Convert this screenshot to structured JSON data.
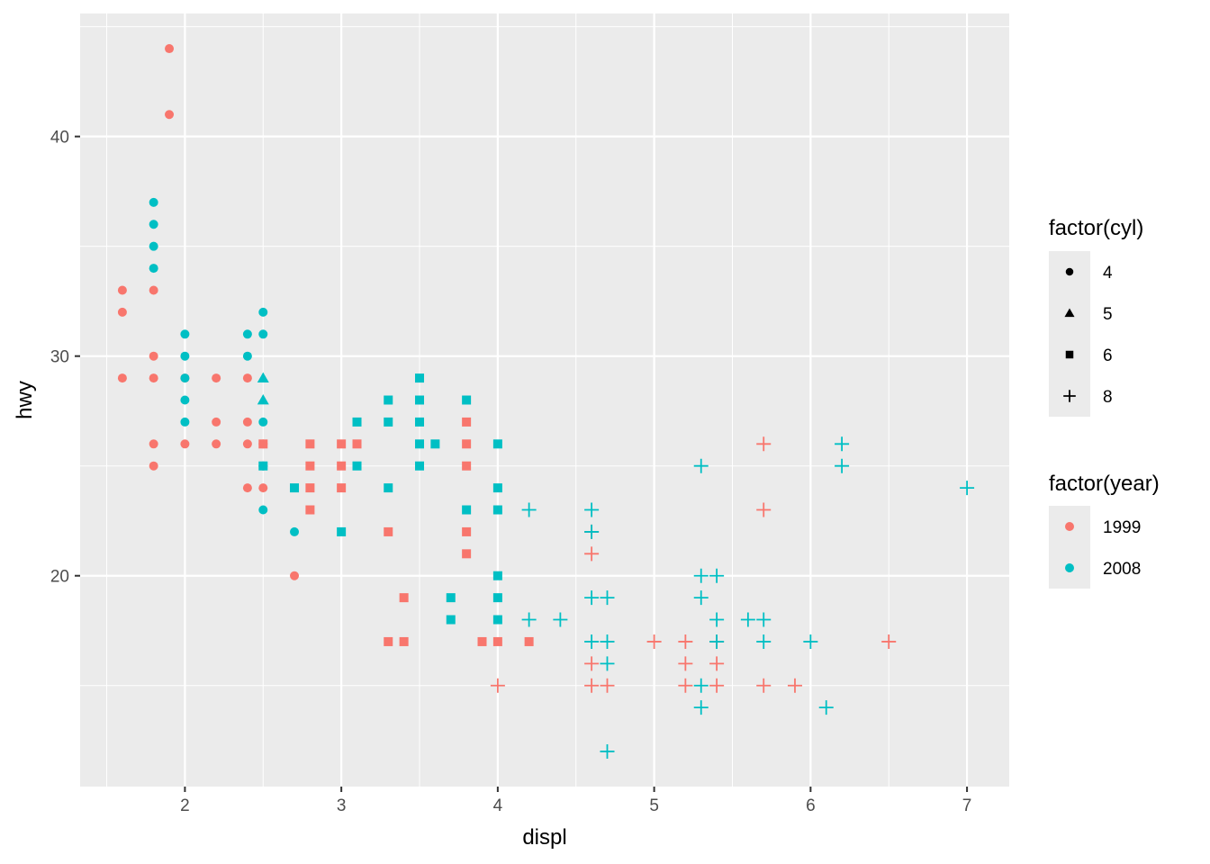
{
  "chart_data": {
    "type": "scatter",
    "xlabel": "displ",
    "ylabel": "hwy",
    "xlim": [
      1.33,
      7.27
    ],
    "ylim": [
      10.4,
      45.6
    ],
    "x_ticks": [
      2,
      3,
      4,
      5,
      6,
      7
    ],
    "y_ticks": [
      20,
      30,
      40
    ],
    "x_tick_labels": [
      "2",
      "3",
      "4",
      "5",
      "6",
      "7"
    ],
    "y_tick_labels": [
      "20",
      "30",
      "40"
    ],
    "grid": true,
    "legend_placement": "right",
    "shape_legend": {
      "title": "factor(cyl)",
      "items": [
        {
          "label": "4",
          "shape": "circle"
        },
        {
          "label": "5",
          "shape": "triangle"
        },
        {
          "label": "6",
          "shape": "square"
        },
        {
          "label": "8",
          "shape": "plus"
        }
      ]
    },
    "color_legend": {
      "title": "factor(year)",
      "items": [
        {
          "label": "1999",
          "color": "#F8766D"
        },
        {
          "label": "2008",
          "color": "#00BFC4"
        }
      ]
    },
    "points": [
      [
        1.6,
        33,
        "4",
        "1999"
      ],
      [
        1.6,
        32,
        "4",
        "1999"
      ],
      [
        1.6,
        29,
        "4",
        "1999"
      ],
      [
        1.8,
        33,
        "4",
        "1999"
      ],
      [
        1.8,
        30,
        "4",
        "1999"
      ],
      [
        1.8,
        29,
        "4",
        "1999"
      ],
      [
        1.8,
        26,
        "4",
        "1999"
      ],
      [
        1.8,
        25,
        "4",
        "1999"
      ],
      [
        1.9,
        44,
        "4",
        "1999"
      ],
      [
        1.9,
        41,
        "4",
        "1999"
      ],
      [
        2.0,
        29,
        "4",
        "1999"
      ],
      [
        2.0,
        26,
        "4",
        "1999"
      ],
      [
        2.2,
        29,
        "4",
        "1999"
      ],
      [
        2.2,
        27,
        "4",
        "1999"
      ],
      [
        2.2,
        26,
        "4",
        "1999"
      ],
      [
        2.4,
        29,
        "4",
        "1999"
      ],
      [
        2.4,
        27,
        "4",
        "1999"
      ],
      [
        2.4,
        26,
        "4",
        "1999"
      ],
      [
        2.4,
        24,
        "4",
        "1999"
      ],
      [
        2.5,
        26,
        "4",
        "1999"
      ],
      [
        2.5,
        25,
        "4",
        "1999"
      ],
      [
        2.5,
        24,
        "4",
        "1999"
      ],
      [
        2.7,
        20,
        "4",
        "1999"
      ],
      [
        1.8,
        37,
        "4",
        "2008"
      ],
      [
        1.8,
        36,
        "4",
        "2008"
      ],
      [
        1.8,
        35,
        "4",
        "2008"
      ],
      [
        1.8,
        34,
        "4",
        "2008"
      ],
      [
        2.0,
        31,
        "4",
        "2008"
      ],
      [
        2.0,
        30,
        "4",
        "2008"
      ],
      [
        2.0,
        29,
        "4",
        "2008"
      ],
      [
        2.0,
        28,
        "4",
        "2008"
      ],
      [
        2.0,
        27,
        "4",
        "2008"
      ],
      [
        2.4,
        31,
        "4",
        "2008"
      ],
      [
        2.4,
        30,
        "4",
        "2008"
      ],
      [
        2.5,
        32,
        "4",
        "2008"
      ],
      [
        2.5,
        31,
        "4",
        "2008"
      ],
      [
        2.5,
        27,
        "4",
        "2008"
      ],
      [
        2.5,
        25,
        "4",
        "2008"
      ],
      [
        2.5,
        23,
        "4",
        "2008"
      ],
      [
        2.7,
        22,
        "4",
        "2008"
      ],
      [
        2.5,
        29,
        "5",
        "2008"
      ],
      [
        2.5,
        28,
        "5",
        "2008"
      ],
      [
        2.5,
        26,
        "6",
        "1999"
      ],
      [
        2.8,
        26,
        "6",
        "1999"
      ],
      [
        2.8,
        25,
        "6",
        "1999"
      ],
      [
        2.8,
        24,
        "6",
        "1999"
      ],
      [
        2.8,
        23,
        "6",
        "1999"
      ],
      [
        3.0,
        26,
        "6",
        "1999"
      ],
      [
        3.0,
        25,
        "6",
        "1999"
      ],
      [
        3.0,
        24,
        "6",
        "1999"
      ],
      [
        3.1,
        26,
        "6",
        "1999"
      ],
      [
        3.3,
        22,
        "6",
        "1999"
      ],
      [
        3.3,
        17,
        "6",
        "1999"
      ],
      [
        3.4,
        19,
        "6",
        "1999"
      ],
      [
        3.4,
        17,
        "6",
        "1999"
      ],
      [
        3.8,
        27,
        "6",
        "1999"
      ],
      [
        3.8,
        26,
        "6",
        "1999"
      ],
      [
        3.8,
        25,
        "6",
        "1999"
      ],
      [
        3.8,
        22,
        "6",
        "1999"
      ],
      [
        3.8,
        21,
        "6",
        "1999"
      ],
      [
        3.9,
        17,
        "6",
        "1999"
      ],
      [
        4.0,
        17,
        "6",
        "1999"
      ],
      [
        4.2,
        17,
        "6",
        "1999"
      ],
      [
        2.5,
        25,
        "6",
        "2008"
      ],
      [
        2.7,
        24,
        "6",
        "2008"
      ],
      [
        3.0,
        22,
        "6",
        "2008"
      ],
      [
        3.1,
        27,
        "6",
        "2008"
      ],
      [
        3.1,
        25,
        "6",
        "2008"
      ],
      [
        3.3,
        28,
        "6",
        "2008"
      ],
      [
        3.3,
        27,
        "6",
        "2008"
      ],
      [
        3.3,
        24,
        "6",
        "2008"
      ],
      [
        3.5,
        29,
        "6",
        "2008"
      ],
      [
        3.5,
        28,
        "6",
        "2008"
      ],
      [
        3.5,
        27,
        "6",
        "2008"
      ],
      [
        3.5,
        26,
        "6",
        "2008"
      ],
      [
        3.5,
        25,
        "6",
        "2008"
      ],
      [
        3.6,
        26,
        "6",
        "2008"
      ],
      [
        3.7,
        19,
        "6",
        "2008"
      ],
      [
        3.7,
        18,
        "6",
        "2008"
      ],
      [
        3.8,
        28,
        "6",
        "2008"
      ],
      [
        3.8,
        23,
        "6",
        "2008"
      ],
      [
        4.0,
        26,
        "6",
        "2008"
      ],
      [
        4.0,
        24,
        "6",
        "2008"
      ],
      [
        4.0,
        23,
        "6",
        "2008"
      ],
      [
        4.0,
        20,
        "6",
        "2008"
      ],
      [
        4.0,
        19,
        "6",
        "2008"
      ],
      [
        4.0,
        18,
        "6",
        "2008"
      ],
      [
        4.0,
        15,
        "8",
        "1999"
      ],
      [
        4.6,
        22,
        "8",
        "1999"
      ],
      [
        4.6,
        21,
        "8",
        "1999"
      ],
      [
        4.6,
        16,
        "8",
        "1999"
      ],
      [
        4.6,
        15,
        "8",
        "1999"
      ],
      [
        4.7,
        15,
        "8",
        "1999"
      ],
      [
        5.0,
        17,
        "8",
        "1999"
      ],
      [
        5.2,
        17,
        "8",
        "1999"
      ],
      [
        5.2,
        16,
        "8",
        "1999"
      ],
      [
        5.2,
        15,
        "8",
        "1999"
      ],
      [
        5.4,
        17,
        "8",
        "1999"
      ],
      [
        5.4,
        16,
        "8",
        "1999"
      ],
      [
        5.4,
        15,
        "8",
        "1999"
      ],
      [
        5.7,
        26,
        "8",
        "1999"
      ],
      [
        5.7,
        23,
        "8",
        "1999"
      ],
      [
        5.7,
        15,
        "8",
        "1999"
      ],
      [
        5.9,
        15,
        "8",
        "1999"
      ],
      [
        6.5,
        17,
        "8",
        "1999"
      ],
      [
        4.2,
        23,
        "8",
        "2008"
      ],
      [
        4.2,
        18,
        "8",
        "2008"
      ],
      [
        4.4,
        18,
        "8",
        "2008"
      ],
      [
        4.6,
        23,
        "8",
        "2008"
      ],
      [
        4.6,
        22,
        "8",
        "2008"
      ],
      [
        4.6,
        19,
        "8",
        "2008"
      ],
      [
        4.6,
        17,
        "8",
        "2008"
      ],
      [
        4.7,
        19,
        "8",
        "2008"
      ],
      [
        4.7,
        17,
        "8",
        "2008"
      ],
      [
        4.7,
        16,
        "8",
        "2008"
      ],
      [
        4.7,
        12,
        "8",
        "2008"
      ],
      [
        5.3,
        25,
        "8",
        "2008"
      ],
      [
        5.3,
        20,
        "8",
        "2008"
      ],
      [
        5.3,
        19,
        "8",
        "2008"
      ],
      [
        5.3,
        15,
        "8",
        "2008"
      ],
      [
        5.3,
        14,
        "8",
        "2008"
      ],
      [
        5.4,
        20,
        "8",
        "2008"
      ],
      [
        5.4,
        18,
        "8",
        "2008"
      ],
      [
        5.4,
        17,
        "8",
        "2008"
      ],
      [
        5.6,
        18,
        "8",
        "2008"
      ],
      [
        5.7,
        18,
        "8",
        "2008"
      ],
      [
        5.7,
        17,
        "8",
        "2008"
      ],
      [
        6.0,
        17,
        "8",
        "2008"
      ],
      [
        6.1,
        14,
        "8",
        "2008"
      ],
      [
        6.2,
        26,
        "8",
        "2008"
      ],
      [
        6.2,
        25,
        "8",
        "2008"
      ],
      [
        7.0,
        24,
        "8",
        "2008"
      ]
    ]
  }
}
